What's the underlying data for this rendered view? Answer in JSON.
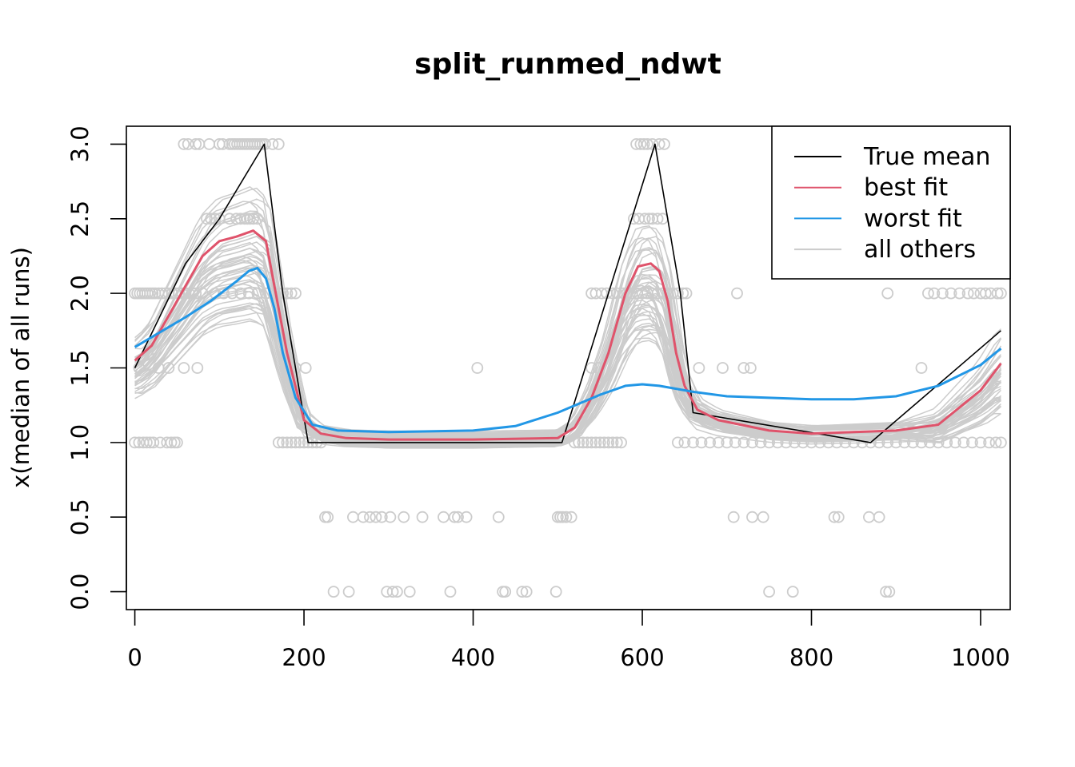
{
  "chart_data": {
    "type": "line",
    "title": "split_runmed_ndwt",
    "xlabel": "",
    "ylabel": "x(median of all runs)",
    "xlim": [
      -10,
      1035
    ],
    "ylim": [
      -0.12,
      3.12
    ],
    "xticks": [
      0,
      200,
      400,
      600,
      800,
      1000
    ],
    "xtick_labels": [
      "0",
      "200",
      "400",
      "600",
      "800",
      "1000"
    ],
    "yticks": [
      0.0,
      0.5,
      1.0,
      1.5,
      2.0,
      2.5,
      3.0
    ],
    "ytick_labels": [
      "0.0",
      "0.5",
      "1.0",
      "1.5",
      "2.0",
      "2.5",
      "3.0"
    ],
    "grid": false,
    "legend": {
      "position": "top-right",
      "entries": [
        {
          "label": "True mean",
          "color": "#000000"
        },
        {
          "label": "best fit",
          "color": "#DF536B"
        },
        {
          "label": "worst fit",
          "color": "#2297E6"
        },
        {
          "label": "all others",
          "color": "#CCCCCC"
        }
      ]
    },
    "series": [
      {
        "name": "True mean",
        "color": "#000000",
        "x": [
          0,
          60,
          100,
          153,
          175,
          205,
          505,
          560,
          615,
          645,
          660,
          870,
          1024
        ],
        "y": [
          1.5,
          2.2,
          2.5,
          3.0,
          2.0,
          1.0,
          1.0,
          2.0,
          3.0,
          2.0,
          1.2,
          1.0,
          1.75
        ]
      },
      {
        "name": "best fit",
        "color": "#DF536B",
        "x": [
          0,
          20,
          40,
          60,
          80,
          100,
          120,
          140,
          155,
          165,
          180,
          200,
          220,
          250,
          300,
          400,
          500,
          520,
          540,
          560,
          580,
          595,
          610,
          620,
          630,
          640,
          650,
          665,
          690,
          750,
          800,
          900,
          950,
          1000,
          1024
        ],
        "y": [
          1.55,
          1.65,
          1.85,
          2.05,
          2.25,
          2.35,
          2.38,
          2.42,
          2.35,
          2.05,
          1.6,
          1.15,
          1.06,
          1.03,
          1.02,
          1.02,
          1.03,
          1.1,
          1.3,
          1.6,
          2.0,
          2.18,
          2.2,
          2.15,
          1.95,
          1.6,
          1.38,
          1.22,
          1.15,
          1.08,
          1.06,
          1.08,
          1.12,
          1.35,
          1.53
        ]
      },
      {
        "name": "worst fit",
        "color": "#2297E6",
        "x": [
          0,
          30,
          60,
          90,
          120,
          135,
          145,
          155,
          165,
          175,
          190,
          210,
          240,
          300,
          400,
          450,
          500,
          550,
          580,
          600,
          620,
          660,
          700,
          800,
          850,
          900,
          950,
          1000,
          1024
        ],
        "y": [
          1.64,
          1.74,
          1.84,
          1.95,
          2.08,
          2.15,
          2.17,
          2.1,
          1.9,
          1.6,
          1.3,
          1.12,
          1.08,
          1.07,
          1.08,
          1.11,
          1.2,
          1.32,
          1.38,
          1.39,
          1.38,
          1.34,
          1.31,
          1.29,
          1.29,
          1.31,
          1.38,
          1.52,
          1.63
        ]
      }
    ],
    "others": {
      "name": "all others",
      "color": "#CCCCCC",
      "count": 45,
      "description": "Grey fitted curves for remaining runs, varying around the true mean shape"
    },
    "observations": {
      "color": "#CCCCCC",
      "points": [
        [
          0,
          2
        ],
        [
          3,
          2
        ],
        [
          6,
          2
        ],
        [
          9,
          2
        ],
        [
          12,
          2
        ],
        [
          15,
          2
        ],
        [
          18,
          2
        ],
        [
          21,
          2
        ],
        [
          24,
          2
        ],
        [
          28,
          2
        ],
        [
          32,
          2
        ],
        [
          36,
          2
        ],
        [
          40,
          2
        ],
        [
          44,
          2
        ],
        [
          48,
          2
        ],
        [
          52,
          2
        ],
        [
          56,
          2
        ],
        [
          60,
          2
        ],
        [
          64,
          2
        ],
        [
          68,
          2
        ],
        [
          72,
          2
        ],
        [
          80,
          2
        ],
        [
          95,
          2
        ],
        [
          105,
          2
        ],
        [
          115,
          2
        ],
        [
          125,
          2
        ],
        [
          135,
          2
        ],
        [
          145,
          2
        ],
        [
          155,
          2
        ],
        [
          165,
          2
        ],
        [
          170,
          2
        ],
        [
          175,
          2
        ],
        [
          180,
          2
        ],
        [
          185,
          2
        ],
        [
          190,
          2
        ],
        [
          58,
          3
        ],
        [
          63,
          3
        ],
        [
          72,
          3
        ],
        [
          76,
          3
        ],
        [
          88,
          3
        ],
        [
          100,
          3
        ],
        [
          104,
          3
        ],
        [
          112,
          3
        ],
        [
          115,
          3
        ],
        [
          118,
          3
        ],
        [
          121,
          3
        ],
        [
          124,
          3
        ],
        [
          127,
          3
        ],
        [
          130,
          3
        ],
        [
          133,
          3
        ],
        [
          136,
          3
        ],
        [
          139,
          3
        ],
        [
          142,
          3
        ],
        [
          145,
          3
        ],
        [
          148,
          3
        ],
        [
          151,
          3
        ],
        [
          154,
          3
        ],
        [
          163,
          3
        ],
        [
          170,
          3
        ],
        [
          85,
          2.5
        ],
        [
          90,
          2.5
        ],
        [
          95,
          2.5
        ],
        [
          100,
          2.5
        ],
        [
          112,
          2.5
        ],
        [
          120,
          2.5
        ],
        [
          125,
          2.5
        ],
        [
          130,
          2.5
        ],
        [
          133,
          2.5
        ],
        [
          136,
          2.5
        ],
        [
          140,
          2.5
        ],
        [
          145,
          2.5
        ],
        [
          5,
          1.5
        ],
        [
          28,
          1.5
        ],
        [
          40,
          1.5
        ],
        [
          58,
          1.5
        ],
        [
          74,
          1.5
        ],
        [
          178,
          1.5
        ],
        [
          190,
          1.5
        ],
        [
          202,
          1.5
        ],
        [
          405,
          1.5
        ],
        [
          540,
          1.5
        ],
        [
          548,
          1.5
        ],
        [
          667,
          1.5
        ],
        [
          695,
          1.5
        ],
        [
          720,
          1.5
        ],
        [
          728,
          1.5
        ],
        [
          930,
          1.5
        ],
        [
          0,
          1
        ],
        [
          5,
          1
        ],
        [
          10,
          1
        ],
        [
          14,
          1
        ],
        [
          18,
          1
        ],
        [
          22,
          1
        ],
        [
          30,
          1
        ],
        [
          38,
          1
        ],
        [
          43,
          1
        ],
        [
          47,
          1
        ],
        [
          50,
          1
        ],
        [
          170,
          1
        ],
        [
          175,
          1
        ],
        [
          180,
          1
        ],
        [
          185,
          1
        ],
        [
          190,
          1
        ],
        [
          195,
          1
        ],
        [
          200,
          1
        ],
        [
          205,
          1
        ],
        [
          210,
          1
        ],
        [
          215,
          1
        ],
        [
          220,
          1
        ],
        [
          520,
          1
        ],
        [
          525,
          1
        ],
        [
          530,
          1
        ],
        [
          535,
          1
        ],
        [
          540,
          1
        ],
        [
          545,
          1
        ],
        [
          550,
          1
        ],
        [
          555,
          1
        ],
        [
          560,
          1
        ],
        [
          565,
          1
        ],
        [
          570,
          1
        ],
        [
          575,
          1
        ],
        [
          642,
          1
        ],
        [
          650,
          1
        ],
        [
          660,
          1
        ],
        [
          670,
          1
        ],
        [
          680,
          1
        ],
        [
          690,
          1
        ],
        [
          700,
          1
        ],
        [
          710,
          1
        ],
        [
          720,
          1
        ],
        [
          730,
          1
        ],
        [
          740,
          1
        ],
        [
          750,
          1
        ],
        [
          760,
          1
        ],
        [
          770,
          1
        ],
        [
          780,
          1
        ],
        [
          790,
          1
        ],
        [
          800,
          1
        ],
        [
          810,
          1
        ],
        [
          820,
          1
        ],
        [
          830,
          1
        ],
        [
          840,
          1
        ],
        [
          850,
          1
        ],
        [
          860,
          1
        ],
        [
          870,
          1
        ],
        [
          880,
          1
        ],
        [
          890,
          1
        ],
        [
          900,
          1
        ],
        [
          910,
          1
        ],
        [
          920,
          1
        ],
        [
          930,
          1
        ],
        [
          940,
          1
        ],
        [
          950,
          1
        ],
        [
          960,
          1
        ],
        [
          970,
          1
        ],
        [
          980,
          1
        ],
        [
          990,
          1
        ],
        [
          1000,
          1
        ],
        [
          1010,
          1
        ],
        [
          1018,
          1
        ],
        [
          1024,
          1
        ],
        [
          225,
          0.5
        ],
        [
          228,
          0.5
        ],
        [
          258,
          0.5
        ],
        [
          270,
          0.5
        ],
        [
          278,
          0.5
        ],
        [
          285,
          0.5
        ],
        [
          292,
          0.5
        ],
        [
          302,
          0.5
        ],
        [
          318,
          0.5
        ],
        [
          340,
          0.5
        ],
        [
          365,
          0.5
        ],
        [
          378,
          0.5
        ],
        [
          382,
          0.5
        ],
        [
          392,
          0.5
        ],
        [
          430,
          0.5
        ],
        [
          500,
          0.5
        ],
        [
          503,
          0.5
        ],
        [
          506,
          0.5
        ],
        [
          510,
          0.5
        ],
        [
          516,
          0.5
        ],
        [
          708,
          0.5
        ],
        [
          730,
          0.5
        ],
        [
          743,
          0.5
        ],
        [
          827,
          0.5
        ],
        [
          832,
          0.5
        ],
        [
          868,
          0.5
        ],
        [
          880,
          0.5
        ],
        [
          235,
          0
        ],
        [
          253,
          0
        ],
        [
          298,
          0
        ],
        [
          305,
          0
        ],
        [
          310,
          0
        ],
        [
          325,
          0
        ],
        [
          373,
          0
        ],
        [
          435,
          0
        ],
        [
          438,
          0
        ],
        [
          458,
          0
        ],
        [
          463,
          0
        ],
        [
          498,
          0
        ],
        [
          750,
          0
        ],
        [
          778,
          0
        ],
        [
          888,
          0
        ],
        [
          892,
          0
        ],
        [
          540,
          2
        ],
        [
          545,
          2
        ],
        [
          552,
          2
        ],
        [
          558,
          2
        ],
        [
          565,
          2
        ],
        [
          570,
          2
        ],
        [
          578,
          2
        ],
        [
          582,
          2
        ],
        [
          588,
          2
        ],
        [
          594,
          2
        ],
        [
          600,
          2
        ],
        [
          606,
          2
        ],
        [
          612,
          2
        ],
        [
          618,
          2
        ],
        [
          624,
          2
        ],
        [
          630,
          2
        ],
        [
          636,
          2
        ],
        [
          642,
          2
        ],
        [
          648,
          2
        ],
        [
          652,
          2
        ],
        [
          590,
          2.5
        ],
        [
          596,
          2.5
        ],
        [
          603,
          2.5
        ],
        [
          608,
          2.5
        ],
        [
          612,
          2.5
        ],
        [
          618,
          2.5
        ],
        [
          624,
          2.5
        ],
        [
          593,
          3
        ],
        [
          598,
          3
        ],
        [
          602,
          3
        ],
        [
          606,
          3
        ],
        [
          612,
          3
        ],
        [
          620,
          3
        ],
        [
          626,
          3
        ],
        [
          712,
          2
        ],
        [
          890,
          2
        ],
        [
          938,
          2
        ],
        [
          945,
          2
        ],
        [
          955,
          2
        ],
        [
          965,
          2
        ],
        [
          975,
          2
        ],
        [
          985,
          2
        ],
        [
          992,
          2
        ],
        [
          1000,
          2
        ],
        [
          1006,
          2
        ],
        [
          1012,
          2
        ],
        [
          1020,
          2
        ],
        [
          1024,
          2
        ]
      ]
    }
  }
}
